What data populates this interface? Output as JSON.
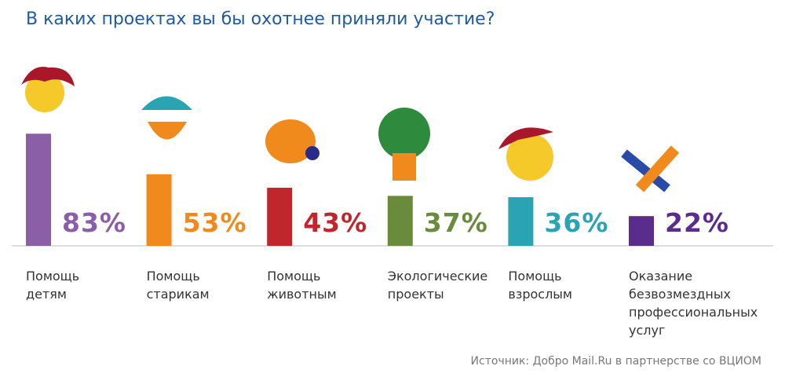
{
  "chart_data": {
    "type": "bar",
    "title": "В каких проектах вы бы охотнее приняли участие?",
    "categories": [
      "Помощь\nдетям",
      "Помощь\nстарикам",
      "Помощь\nживотным",
      "Экологические\nпроекты",
      "Помощь\nвзрослым",
      "Оказание\nбезвозмездных\nпрофессиональных\nуслуг"
    ],
    "values": [
      83,
      53,
      43,
      37,
      36,
      22
    ],
    "value_labels": [
      "83%",
      "53%",
      "43%",
      "37%",
      "36%",
      "22%"
    ],
    "colors": [
      "#8a5fa8",
      "#f08a1c",
      "#c0272d",
      "#6a8a3c",
      "#2aa3b3",
      "#5a2d8c"
    ],
    "source": "Источник: Добро Mail.Ru в партнерстве со ВЦИОМ"
  }
}
